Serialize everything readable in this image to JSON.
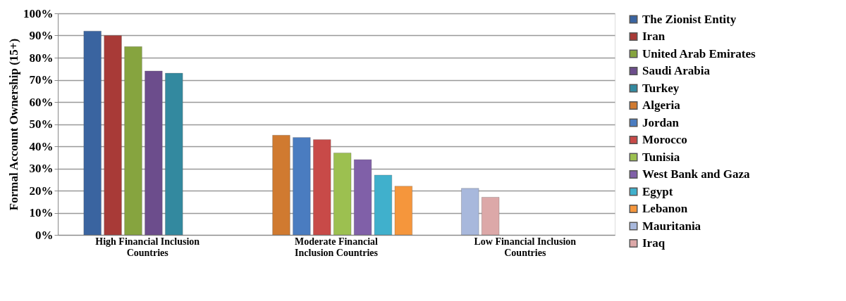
{
  "chart_data": {
    "type": "bar",
    "ylabel": "Formal Account Ownership (15+)",
    "categories": [
      "High Financial Inclusion Countries",
      "Moderate Financial Inclusion Countries",
      "Low Financial Inclusion Countries"
    ],
    "series": [
      {
        "name": "The Zionist Entity",
        "color": "#3a64a0",
        "values": [
          92,
          null,
          null
        ]
      },
      {
        "name": "Iran",
        "color": "#a83a37",
        "values": [
          90,
          null,
          null
        ]
      },
      {
        "name": "United Arab Emirates",
        "color": "#86a43f",
        "values": [
          85,
          null,
          null
        ]
      },
      {
        "name": "Saudi Arabia",
        "color": "#6c4d8c",
        "values": [
          74,
          null,
          null
        ]
      },
      {
        "name": "Turkey",
        "color": "#33899f",
        "values": [
          73,
          null,
          null
        ]
      },
      {
        "name": "Algeria",
        "color": "#d07a30",
        "values": [
          null,
          45,
          null
        ]
      },
      {
        "name": "Jordan",
        "color": "#4a7cc0",
        "values": [
          null,
          44,
          null
        ]
      },
      {
        "name": "Morocco",
        "color": "#c84a48",
        "values": [
          null,
          43,
          null
        ]
      },
      {
        "name": "Tunisia",
        "color": "#9cc050",
        "values": [
          null,
          37,
          null
        ]
      },
      {
        "name": "West Bank and Gaza",
        "color": "#8060a8",
        "values": [
          null,
          34,
          null
        ]
      },
      {
        "name": "Egypt",
        "color": "#40b0cc",
        "values": [
          null,
          27,
          null
        ]
      },
      {
        "name": "Lebanon",
        "color": "#f5963c",
        "values": [
          null,
          22,
          null
        ]
      },
      {
        "name": "Mauritania",
        "color": "#a8b8dc",
        "values": [
          null,
          null,
          21
        ]
      },
      {
        "name": "Iraq",
        "color": "#dca8a8",
        "values": [
          null,
          null,
          17
        ]
      }
    ],
    "ylim": [
      0,
      100
    ],
    "yticks": [
      {
        "value": 0,
        "label": "0%"
      },
      {
        "value": 10,
        "label": "10%"
      },
      {
        "value": 20,
        "label": "20%"
      },
      {
        "value": 30,
        "label": "30%"
      },
      {
        "value": 40,
        "label": "40%"
      },
      {
        "value": 50,
        "label": "50%"
      },
      {
        "value": 60,
        "label": "60%"
      },
      {
        "value": 70,
        "label": "70%"
      },
      {
        "value": 80,
        "label": "80%"
      },
      {
        "value": 90,
        "label": "90%"
      },
      {
        "value": 100,
        "label": "100%"
      }
    ],
    "grid": "y",
    "legend": "right"
  }
}
